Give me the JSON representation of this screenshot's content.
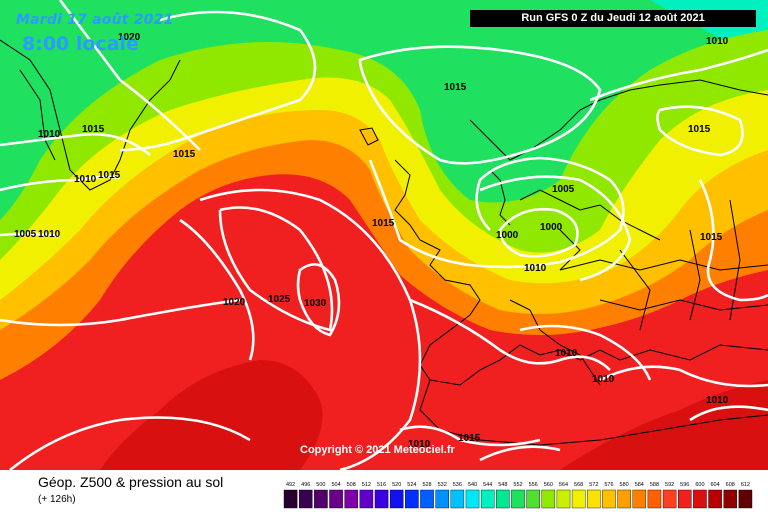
{
  "header": {
    "date": "Mardi 17 août 2021",
    "time": "8:00 locale",
    "run": "Run GFS 0 Z du Jeudi 12 août 2021"
  },
  "copyright": "Copyright © 2021 Meteociel.fr",
  "footer": {
    "title": "Géop. Z500 & pression au sol",
    "subtitle": "(+ 126h)"
  },
  "isobar_labels": [
    {
      "text": "1020"
    },
    {
      "text": "1010"
    },
    {
      "text": "1015"
    },
    {
      "text": "1010"
    },
    {
      "text": "1010"
    },
    {
      "text": "1015"
    },
    {
      "text": "1015"
    },
    {
      "text": "1005"
    },
    {
      "text": "1010"
    },
    {
      "text": "1015"
    },
    {
      "text": "1005"
    },
    {
      "text": "1000"
    },
    {
      "text": "1000"
    },
    {
      "text": "1010"
    },
    {
      "text": "1015"
    },
    {
      "text": "1020"
    },
    {
      "text": "1025"
    },
    {
      "text": "1030"
    },
    {
      "text": "1010"
    },
    {
      "text": "1010"
    },
    {
      "text": "1010"
    },
    {
      "text": "1015"
    },
    {
      "text": "1015"
    },
    {
      "text": "1015"
    },
    {
      "text": "1010"
    }
  ],
  "legend": {
    "values": [
      "492",
      "496",
      "500",
      "504",
      "508",
      "512",
      "516",
      "520",
      "524",
      "528",
      "532",
      "536",
      "540",
      "544",
      "548",
      "552",
      "556",
      "560",
      "564",
      "568",
      "572",
      "576",
      "580",
      "584",
      "588",
      "592",
      "596",
      "600",
      "604",
      "608",
      "612"
    ],
    "colors": [
      "#280030",
      "#3a0050",
      "#52006c",
      "#6a0088",
      "#7f00a8",
      "#6000c8",
      "#3a00e0",
      "#1010f0",
      "#0030ff",
      "#0060ff",
      "#0090ff",
      "#00c0ff",
      "#00e8f8",
      "#00f0c0",
      "#00e890",
      "#20e060",
      "#50e030",
      "#90e800",
      "#c8f000",
      "#f0f000",
      "#ffe000",
      "#ffc000",
      "#ffa000",
      "#ff8000",
      "#ff6000",
      "#ff4020",
      "#f02020",
      "#d81010",
      "#b80000",
      "#900000",
      "#600000"
    ]
  }
}
